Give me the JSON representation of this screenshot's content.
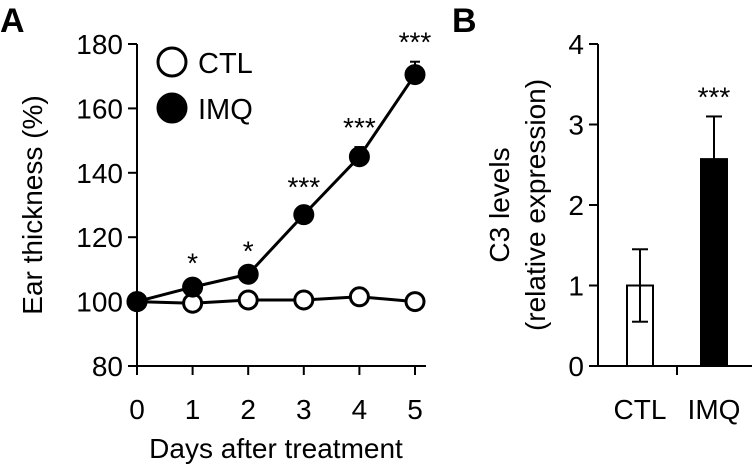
{
  "chart_data": [
    {
      "panel_label": "A",
      "type": "line",
      "xlabel": "Days after treatment",
      "ylabel": "Ear thickness (%)",
      "x": [
        0,
        1,
        2,
        3,
        4,
        5
      ],
      "xticks": [
        "0",
        "1",
        "2",
        "3",
        "4",
        "5"
      ],
      "ylim": [
        80,
        180
      ],
      "yticks": [
        "80",
        "100",
        "120",
        "140",
        "160",
        "180"
      ],
      "legend_position": "top-left",
      "series": [
        {
          "name": "CTL",
          "marker": "open-circle",
          "color": "#ffffff",
          "values": [
            100,
            99.5,
            100.5,
            100.5,
            101.5,
            100
          ],
          "errors": [
            0,
            0,
            0,
            0,
            0,
            0
          ],
          "significance": [
            "",
            "",
            "",
            "",
            "",
            ""
          ]
        },
        {
          "name": "IMQ",
          "marker": "filled-circle",
          "color": "#000000",
          "values": [
            100,
            104.5,
            108.5,
            127,
            145,
            170.5
          ],
          "errors": [
            0,
            1.5,
            1.2,
            2.5,
            3,
            4
          ],
          "significance": [
            "",
            "*",
            "*",
            "***",
            "***",
            "***"
          ]
        }
      ]
    },
    {
      "panel_label": "B",
      "type": "bar",
      "ylabel_line1": "C3 levels",
      "ylabel_line2": "(relative expression)",
      "categories": [
        "CTL",
        "IMQ"
      ],
      "values": [
        1.0,
        2.57
      ],
      "errors": [
        0.45,
        0.53
      ],
      "colors": [
        "#ffffff",
        "#000000"
      ],
      "significance": [
        "",
        "***"
      ],
      "ylim": [
        0,
        4
      ],
      "yticks": [
        "0",
        "1",
        "2",
        "3",
        "4"
      ]
    }
  ]
}
